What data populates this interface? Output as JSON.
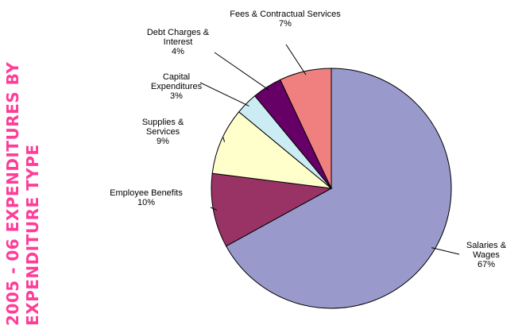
{
  "page": {
    "title_lines": [
      "2005 - 06 EXPENDITURES BY",
      "EXPENDITURE TYPE"
    ]
  },
  "chart_data": {
    "type": "pie",
    "title": "2005 - 06 EXPENDITURES BY EXPENDITURE TYPE",
    "start": "12 o'clock",
    "direction": "clockwise",
    "slices": [
      {
        "label_lines": [
          "Salaries &",
          "Wages"
        ],
        "label": "Salaries & Wages",
        "percent_text": "67%",
        "value": 67,
        "color": "#9999cc"
      },
      {
        "label_lines": [
          "Employee Benefits"
        ],
        "label": "Employee Benefits",
        "percent_text": "10%",
        "value": 10,
        "color": "#993366"
      },
      {
        "label_lines": [
          "Supplies &",
          "Services"
        ],
        "label": "Supplies & Services",
        "percent_text": "9%",
        "value": 9,
        "color": "#ffffcc"
      },
      {
        "label_lines": [
          "Capital",
          "Expenditures"
        ],
        "label": "Capital Expenditures",
        "percent_text": "3%",
        "value": 3,
        "color": "#ccecf4"
      },
      {
        "label_lines": [
          "Debt Charges &",
          "Interest"
        ],
        "label": "Debt Charges & Interest",
        "percent_text": "4%",
        "value": 4,
        "color": "#660066"
      },
      {
        "label_lines": [
          "Fees & Contractual Services"
        ],
        "label": "Fees & Contractual Services",
        "percent_text": "7%",
        "value": 7,
        "color": "#f08080"
      }
    ]
  }
}
